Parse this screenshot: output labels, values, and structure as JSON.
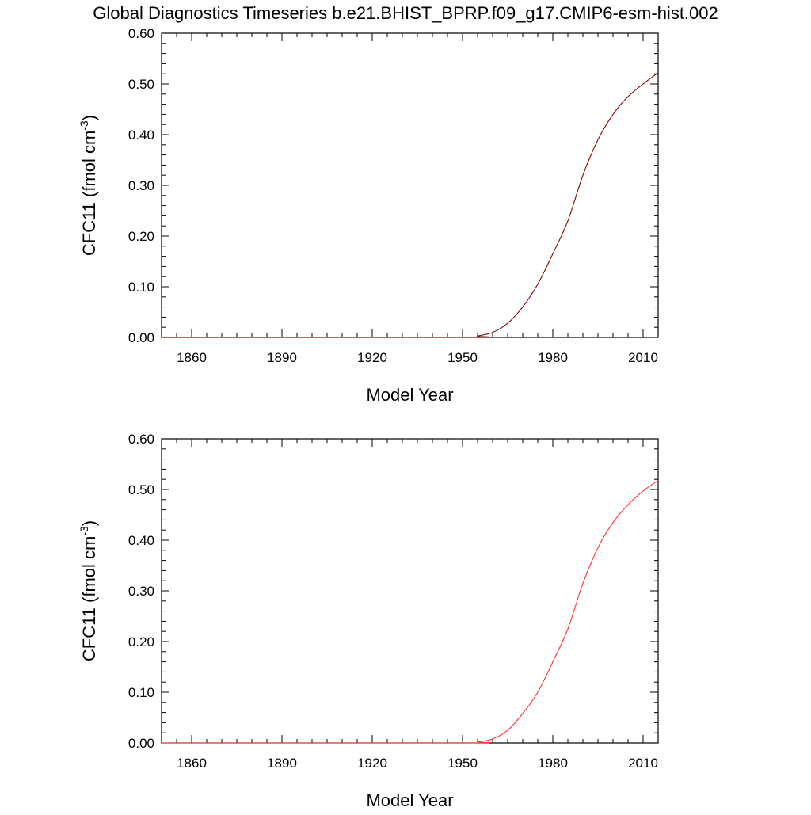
{
  "title": "Global Diagnostics Timeseries b.e21.BHIST_BPRP.f09_g17.CMIP6-esm-hist.002",
  "colors": {
    "top_series": "#8b0000",
    "bottom_series": "#ff3030",
    "axes": "#000000"
  },
  "chart_data": [
    {
      "type": "line",
      "xlabel": "Model Year",
      "ylabel": "CFC11 (fmol cm",
      "ylabel_superscript": "-3",
      "ylabel_suffix": ")",
      "xlim": [
        1850,
        2015
      ],
      "ylim": [
        0,
        0.6
      ],
      "xticks": [
        1860,
        1890,
        1920,
        1950,
        1980,
        2010
      ],
      "xtick_labels": [
        "1860",
        "1890",
        "1920",
        "1950",
        "1980",
        "2010"
      ],
      "yticks": [
        0,
        0.1,
        0.2,
        0.3,
        0.4,
        0.5,
        0.6
      ],
      "ytick_labels": [
        "0.00",
        "0.10",
        "0.20",
        "0.30",
        "0.40",
        "0.50",
        "0.60"
      ],
      "grid": false,
      "series": [
        {
          "color": "#8b0000",
          "x": [
            1850,
            1950,
            1955,
            1960,
            1965,
            1970,
            1975,
            1980,
            1985,
            1990,
            1995,
            2000,
            2005,
            2010,
            2015
          ],
          "y": [
            0,
            0,
            0.003,
            0.01,
            0.028,
            0.06,
            0.105,
            0.165,
            0.23,
            0.32,
            0.39,
            0.44,
            0.475,
            0.5,
            0.522
          ]
        }
      ]
    },
    {
      "type": "line",
      "xlabel": "Model Year",
      "ylabel": "CFC11 (fmol cm",
      "ylabel_superscript": "-3",
      "ylabel_suffix": ")",
      "xlim": [
        1850,
        2015
      ],
      "ylim": [
        0,
        0.6
      ],
      "xticks": [
        1860,
        1890,
        1920,
        1950,
        1980,
        2010
      ],
      "xtick_labels": [
        "1860",
        "1890",
        "1920",
        "1950",
        "1980",
        "2010"
      ],
      "yticks": [
        0,
        0.1,
        0.2,
        0.3,
        0.4,
        0.5,
        0.6
      ],
      "ytick_labels": [
        "0.00",
        "0.10",
        "0.20",
        "0.30",
        "0.40",
        "0.50",
        "0.60"
      ],
      "grid": false,
      "series": [
        {
          "color": "#ff3030",
          "x": [
            1850,
            1950,
            1955,
            1960,
            1965,
            1970,
            1975,
            1980,
            1985,
            1990,
            1995,
            2000,
            2005,
            2010,
            2015
          ],
          "y": [
            0,
            0,
            0.002,
            0.008,
            0.025,
            0.058,
            0.1,
            0.16,
            0.225,
            0.315,
            0.385,
            0.435,
            0.47,
            0.497,
            0.518
          ]
        }
      ]
    }
  ]
}
